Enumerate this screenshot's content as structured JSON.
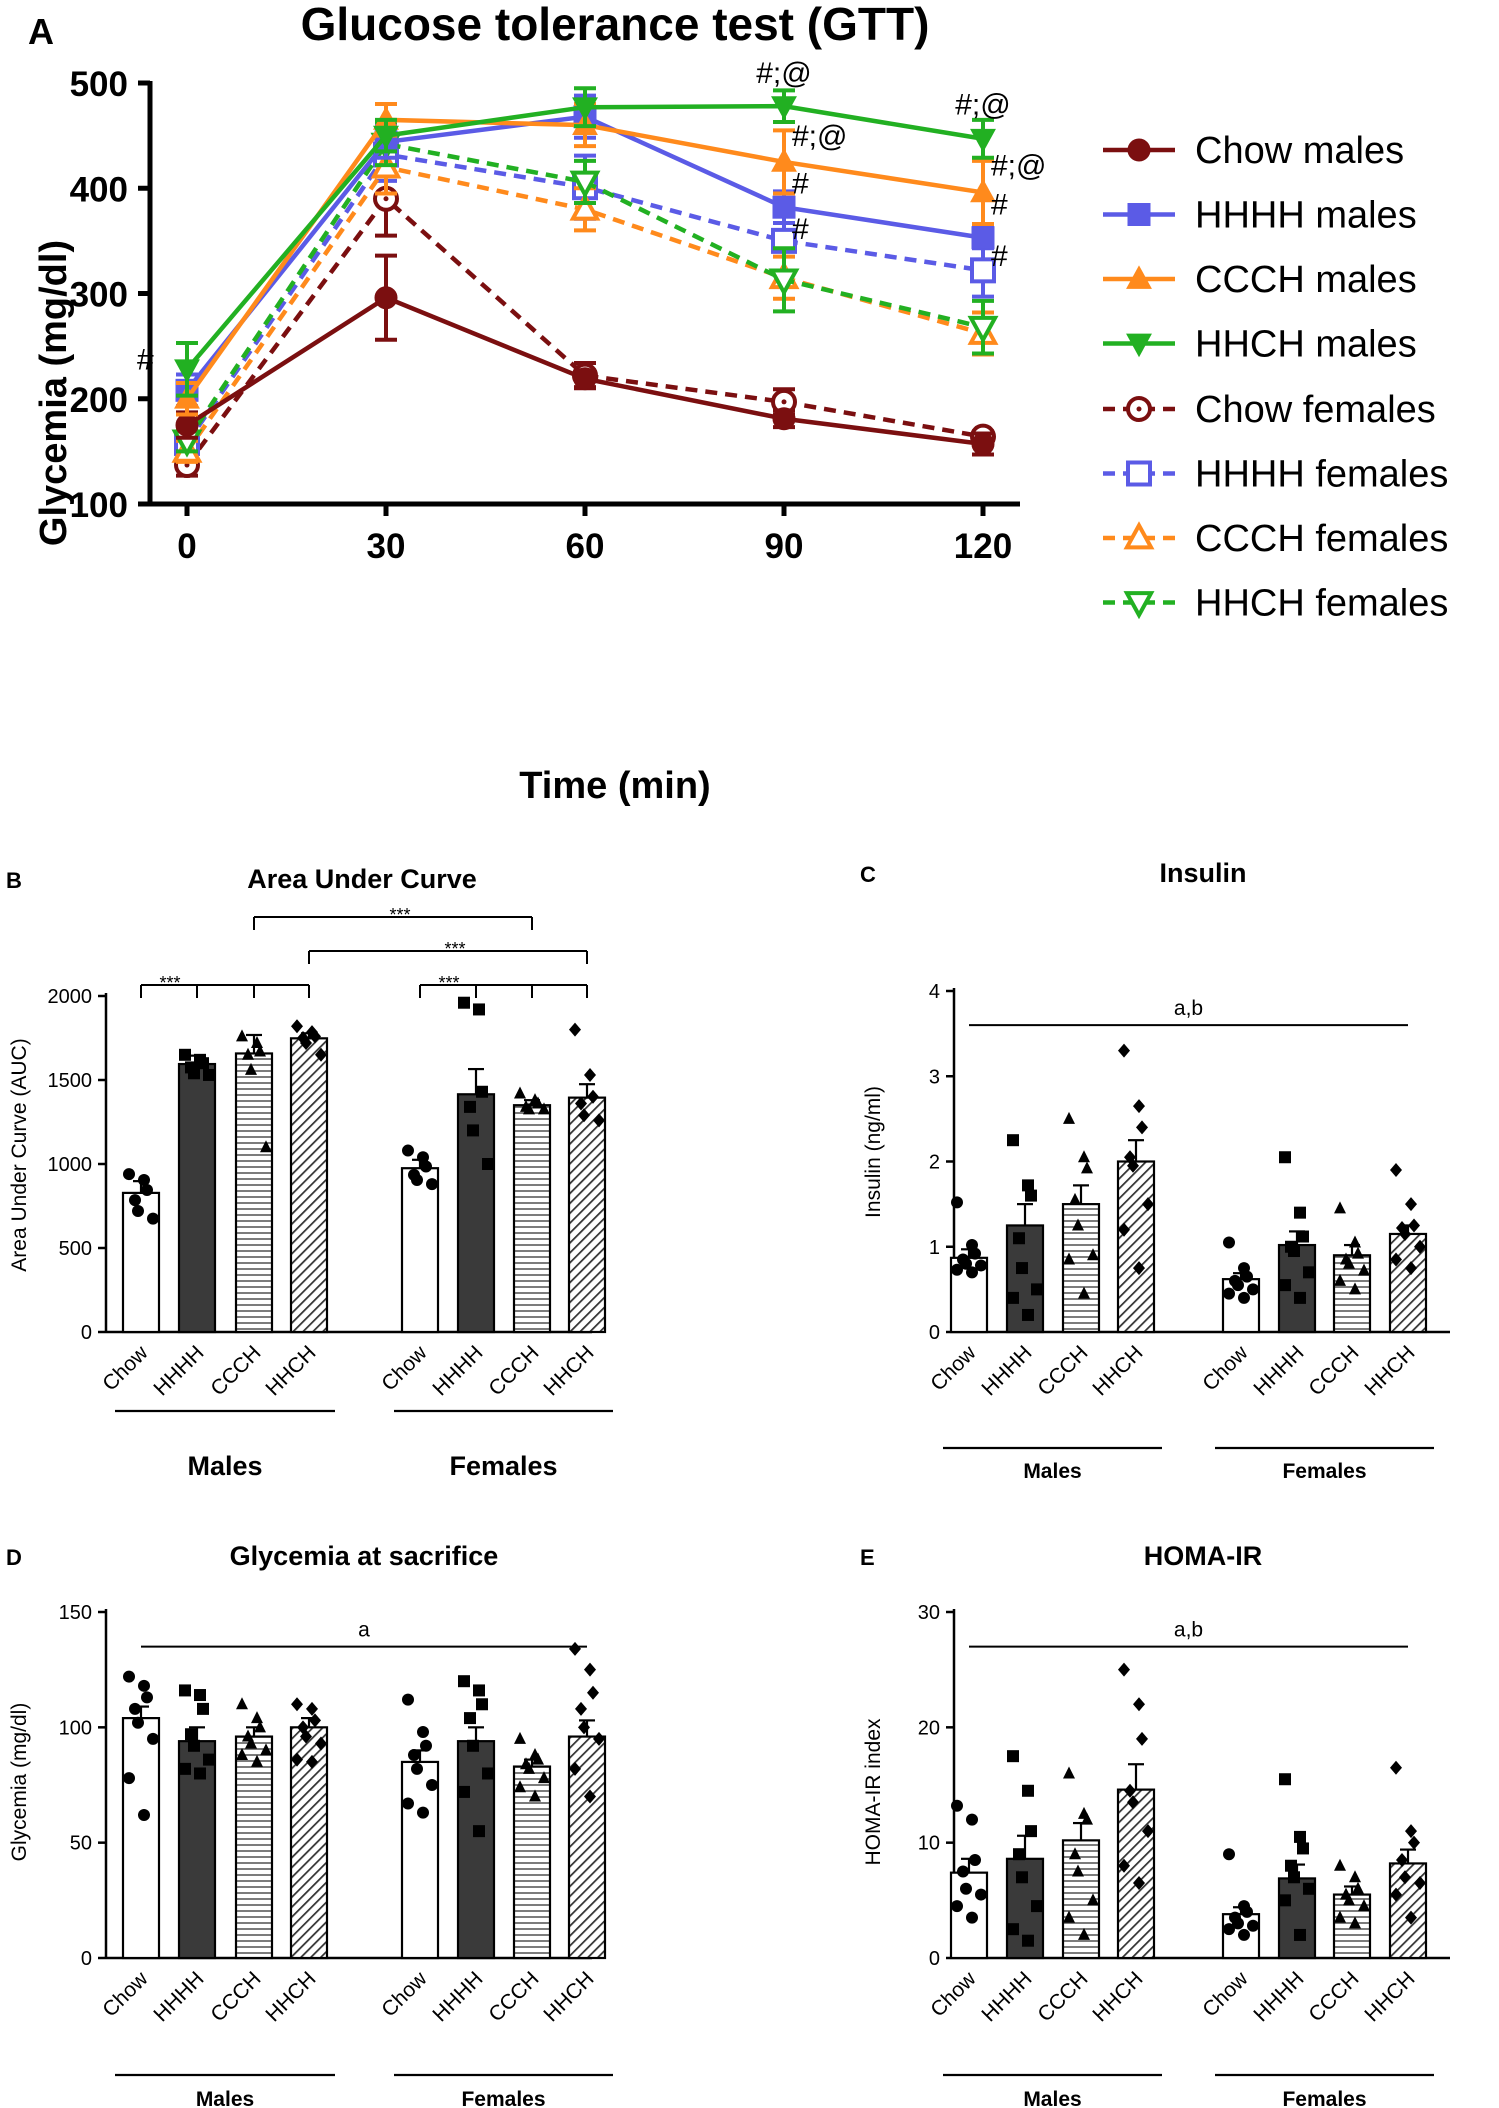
{
  "panel_labels": {
    "a": "A",
    "b": "B",
    "c": "C",
    "d": "D",
    "e": "E"
  },
  "colors": {
    "chow": "#7B0F10",
    "hhhh": "#5B5BE6",
    "ccch": "#FF8A1C",
    "hhch": "#22B022",
    "axis": "#000000",
    "dark_bar": "#3a3a3a"
  },
  "chart_data": [
    {
      "id": "gtt",
      "type": "line",
      "title": "Glucose tolerance test (GTT)",
      "xlabel": "Time (min)",
      "ylabel": "Glycemia (mg/dl)",
      "x": [
        0,
        30,
        60,
        90,
        120
      ],
      "x_ticks": [
        "0",
        "30",
        "60",
        "90",
        "120"
      ],
      "y_ticks": [
        "100",
        "200",
        "300",
        "400",
        "500"
      ],
      "ylim": [
        100,
        500
      ],
      "series": [
        {
          "name": "Chow males",
          "color": "#7B0F10",
          "dashed": false,
          "marker": "circle",
          "values": [
            175,
            296,
            219,
            181,
            157
          ],
          "err": [
            12,
            40,
            8,
            8,
            10
          ]
        },
        {
          "name": "HHHH males",
          "color": "#5B5BE6",
          "dashed": false,
          "marker": "square",
          "values": [
            208,
            444,
            468,
            382,
            353
          ],
          "err": [
            15,
            15,
            20,
            15,
            10
          ]
        },
        {
          "name": "CCCH males",
          "color": "#FF8A1C",
          "dashed": false,
          "marker": "triangle-up",
          "values": [
            200,
            465,
            460,
            425,
            396
          ],
          "err": [
            15,
            15,
            20,
            30,
            30
          ]
        },
        {
          "name": "HHCH males",
          "color": "#22B022",
          "dashed": false,
          "marker": "triangle-down",
          "values": [
            228,
            450,
            477,
            478,
            447
          ],
          "err": [
            25,
            15,
            18,
            15,
            18
          ]
        },
        {
          "name": "Chow females",
          "color": "#7B0F10",
          "dashed": true,
          "marker": "circle-open",
          "values": [
            137,
            390,
            222,
            197,
            164
          ],
          "err": [
            10,
            35,
            12,
            12,
            5
          ]
        },
        {
          "name": "HHHH females",
          "color": "#5B5BE6",
          "dashed": true,
          "marker": "square-open",
          "values": [
            158,
            432,
            401,
            350,
            322
          ],
          "err": [
            8,
            25,
            30,
            30,
            25
          ]
        },
        {
          "name": "CCCH females",
          "color": "#FF8A1C",
          "dashed": true,
          "marker": "triangle-up-open",
          "values": [
            150,
            420,
            380,
            315,
            262
          ],
          "err": [
            10,
            25,
            20,
            20,
            20
          ]
        },
        {
          "name": "HHCH females",
          "color": "#22B022",
          "dashed": true,
          "marker": "triangle-down-open",
          "values": [
            160,
            442,
            406,
            313,
            268
          ],
          "err": [
            10,
            20,
            20,
            30,
            25
          ]
        }
      ],
      "annotations": [
        {
          "text": "#",
          "x": 0,
          "y": 228
        },
        {
          "text": "#;@",
          "x": 90,
          "y": 500
        },
        {
          "text": "#;@",
          "x": 90,
          "y": 440
        },
        {
          "text": "#",
          "x": 90,
          "y": 395
        },
        {
          "text": "#",
          "x": 90,
          "y": 352
        },
        {
          "text": "#;@",
          "x": 120,
          "y": 470
        },
        {
          "text": "#;@",
          "x": 120,
          "y": 412
        },
        {
          "text": "#",
          "x": 120,
          "y": 375
        },
        {
          "text": "#",
          "x": 120,
          "y": 326
        }
      ]
    },
    {
      "id": "auc",
      "type": "bar",
      "title": "Area Under Curve",
      "ylabel": "Area Under Curve (AUC)",
      "ylim": [
        0,
        2000
      ],
      "y_ticks": [
        "0",
        "500",
        "1000",
        "1500",
        "2000"
      ],
      "categories": [
        "Chow",
        "HHHH",
        "CCCH",
        "HHCH",
        "Chow",
        "HHHH",
        "CCCH",
        "HHCH"
      ],
      "groups": [
        "Males",
        "Females"
      ],
      "values": [
        828,
        1595,
        1658,
        1748,
        975,
        1415,
        1350,
        1395
      ],
      "err": [
        70,
        50,
        110,
        30,
        50,
        150,
        30,
        80
      ],
      "points": [
        [
          940,
          905,
          845,
          785,
          720,
          675
        ],
        [
          1650,
          1620,
          1600,
          1575,
          1540,
          1530
        ],
        [
          1760,
          1720,
          1670,
          1650,
          1560,
          1100
        ],
        [
          1820,
          1785,
          1760,
          1750,
          1720,
          1650
        ],
        [
          1080,
          1040,
          985,
          935,
          905,
          880
        ],
        [
          1960,
          1920,
          1430,
          1340,
          1200,
          1000
        ],
        [
          1420,
          1380,
          1360,
          1340,
          1325,
          1325
        ],
        [
          1800,
          1530,
          1400,
          1360,
          1290,
          1260
        ]
      ],
      "significance": [
        {
          "text": "***",
          "from": 0,
          "to": 3,
          "level": 2000
        },
        {
          "text": "***",
          "from": 4,
          "to": 7,
          "level": 2000
        },
        {
          "text": "***",
          "from": 2,
          "to": 6,
          "level": 2300
        },
        {
          "text": "***",
          "from": 3,
          "to": 7,
          "level": 2150
        }
      ]
    },
    {
      "id": "insulin",
      "type": "bar",
      "title": "Insulin",
      "ylabel": "Insulin (ng/ml)",
      "ylim": [
        0,
        4
      ],
      "y_ticks": [
        "0",
        "1",
        "2",
        "3",
        "4"
      ],
      "categories": [
        "Chow",
        "HHHH",
        "CCCH",
        "HHCH",
        "Chow",
        "HHHH",
        "CCCH",
        "HHCH"
      ],
      "groups": [
        "Males",
        "Females"
      ],
      "values": [
        0.87,
        1.25,
        1.5,
        2.0,
        0.62,
        1.02,
        0.9,
        1.15
      ],
      "err": [
        0.1,
        0.25,
        0.22,
        0.25,
        0.07,
        0.16,
        0.12,
        0.1
      ],
      "points": [
        [
          1.52,
          1.02,
          0.92,
          0.85,
          0.8,
          0.78,
          0.73,
          0.7
        ],
        [
          2.25,
          1.72,
          1.6,
          1.1,
          0.75,
          0.5,
          0.4,
          0.2
        ],
        [
          2.5,
          2.05,
          1.92,
          1.55,
          1.25,
          0.9,
          0.85,
          0.45
        ],
        [
          3.3,
          2.65,
          2.4,
          2.05,
          1.95,
          1.5,
          1.2,
          0.75
        ],
        [
          1.05,
          0.75,
          0.65,
          0.6,
          0.55,
          0.5,
          0.45,
          0.4
        ],
        [
          2.05,
          1.4,
          1.12,
          1.0,
          0.95,
          0.7,
          0.55,
          0.4
        ],
        [
          1.45,
          1.05,
          0.92,
          0.85,
          0.8,
          0.72,
          0.6,
          0.5
        ],
        [
          1.9,
          1.5,
          1.25,
          1.22,
          1.15,
          1.0,
          0.85,
          0.75
        ]
      ],
      "significance": [
        {
          "text": "a,b",
          "from": 0,
          "to": 7,
          "level": 3.6
        }
      ]
    },
    {
      "id": "glycemia_sacrifice",
      "type": "bar",
      "title": "Glycemia at sacrifice",
      "ylabel": "Glycemia (mg/dl)",
      "ylim": [
        0,
        150
      ],
      "y_ticks": [
        "0",
        "50",
        "100",
        "150"
      ],
      "categories": [
        "Chow",
        "HHHH",
        "CCCH",
        "HHCH",
        "Chow",
        "HHHH",
        "CCCH",
        "HHCH"
      ],
      "groups": [
        "Males",
        "Females"
      ],
      "values": [
        104,
        94,
        96,
        100,
        85,
        94,
        83,
        96
      ],
      "err": [
        5,
        6,
        4,
        4,
        5,
        6,
        3,
        7
      ],
      "points": [
        [
          122,
          118,
          113,
          108,
          102,
          95,
          78,
          62
        ],
        [
          116,
          114,
          108,
          97,
          92,
          86,
          82,
          80
        ],
        [
          110,
          104,
          100,
          96,
          93,
          90,
          88,
          85
        ],
        [
          110,
          108,
          103,
          100,
          96,
          93,
          86,
          85
        ],
        [
          112,
          98,
          92,
          88,
          82,
          75,
          67,
          63
        ],
        [
          120,
          116,
          110,
          104,
          92,
          80,
          72,
          55
        ],
        [
          95,
          88,
          86,
          84,
          82,
          78,
          74,
          70
        ],
        [
          134,
          125,
          115,
          108,
          100,
          95,
          82,
          70
        ]
      ],
      "significance": [
        {
          "text": "a",
          "from": 0,
          "to": 7,
          "level": 135
        }
      ]
    },
    {
      "id": "homa_ir",
      "type": "bar",
      "title": "HOMA-IR",
      "ylabel": "HOMA-IR index",
      "ylim": [
        0,
        30
      ],
      "y_ticks": [
        "0",
        "10",
        "20",
        "30"
      ],
      "categories": [
        "Chow",
        "HHHH",
        "CCCH",
        "HHCH",
        "Chow",
        "HHHH",
        "CCCH",
        "HHCH"
      ],
      "groups": [
        "Males",
        "Females"
      ],
      "values": [
        7.4,
        8.6,
        10.2,
        14.6,
        3.8,
        6.9,
        5.5,
        8.2
      ],
      "err": [
        1.2,
        2.0,
        1.5,
        2.2,
        0.6,
        1.2,
        0.7,
        1.2
      ],
      "points": [
        [
          13.2,
          12.0,
          8.5,
          7.5,
          6.0,
          5.5,
          4.5,
          3.5
        ],
        [
          17.5,
          14.5,
          11.0,
          9.0,
          7.0,
          4.5,
          2.5,
          1.5
        ],
        [
          16.0,
          12.5,
          12.0,
          9.0,
          7.5,
          5.0,
          3.5,
          2.0
        ],
        [
          25.0,
          22.0,
          19.0,
          14.5,
          13.5,
          11.0,
          8.0,
          6.5
        ],
        [
          9.0,
          4.5,
          4.0,
          3.5,
          3.0,
          2.8,
          2.5,
          2.0
        ],
        [
          15.5,
          10.5,
          9.5,
          8.0,
          7.0,
          6.0,
          5.0,
          2.0
        ],
        [
          8.0,
          7.0,
          6.0,
          5.5,
          5.0,
          4.5,
          3.5,
          3.0
        ],
        [
          16.5,
          11.0,
          10.0,
          8.5,
          7.0,
          6.5,
          5.5,
          3.5
        ]
      ],
      "significance": [
        {
          "text": "a,b",
          "from": 0,
          "to": 7,
          "level": 27
        }
      ]
    }
  ]
}
